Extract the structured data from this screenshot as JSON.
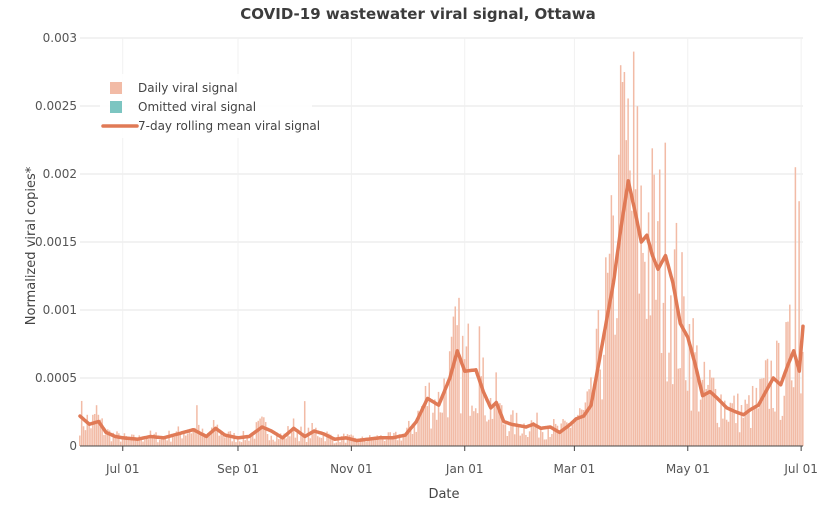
{
  "chart_data": {
    "type": "bar",
    "title": "COVID-19 wastewater viral signal, Ottawa",
    "xlabel": "Date",
    "ylabel": "Normalized viral copies*",
    "ylim": [
      0,
      0.003
    ],
    "yticks": [
      0,
      0.0005,
      0.001,
      0.0015,
      0.002,
      0.0025,
      0.003
    ],
    "ytick_labels": [
      "0",
      "0.0005",
      "0.001",
      "0.0015",
      "0.002",
      "0.0025",
      "0.003"
    ],
    "xlim": [
      -23,
      366
    ],
    "xticks": [
      0,
      62,
      123,
      184,
      243,
      304,
      365
    ],
    "xtick_labels": [
      "Jul 01",
      "Sep 01",
      "Nov 01",
      "Jan 01",
      "Mar 01",
      "May 01",
      "Jul 01"
    ],
    "x_unit": "days since Jul 01",
    "grid": true,
    "legend_position": "top-left",
    "legend": [
      {
        "label": "Daily viral signal",
        "kind": "bar",
        "color": "#f2bba6"
      },
      {
        "label": "Omitted viral signal",
        "kind": "bar",
        "color": "#7cc5c1"
      },
      {
        "label": "7-day rolling mean viral signal",
        "kind": "line",
        "color": "#e07a56"
      }
    ],
    "colors": {
      "daily": "#f2bba6",
      "omitted": "#7cc5c1",
      "mean": "#e07a56",
      "grid": "#e6e6e6"
    },
    "series": [
      {
        "name": "7-day rolling mean viral signal",
        "x": [
          -23,
          -18,
          -13,
          -9,
          -4,
          0,
          8,
          15,
          22,
          30,
          38,
          45,
          50,
          55,
          62,
          68,
          75,
          80,
          86,
          92,
          98,
          103,
          108,
          114,
          120,
          126,
          132,
          138,
          145,
          152,
          158,
          164,
          170,
          176,
          180,
          184,
          190,
          194,
          198,
          201,
          205,
          209,
          213,
          217,
          221,
          225,
          230,
          235,
          240,
          244,
          248,
          252,
          256,
          260,
          264,
          268,
          272,
          276,
          279,
          282,
          285,
          288,
          292,
          296,
          300,
          304,
          308,
          312,
          316,
          320,
          325,
          330,
          334,
          338,
          342,
          346,
          350,
          354,
          358,
          361,
          364,
          366
        ],
        "y": [
          0.00022,
          0.00016,
          0.00018,
          0.0001,
          7e-05,
          6e-05,
          5e-05,
          7e-05,
          6e-05,
          9e-05,
          0.00012,
          7e-05,
          0.00013,
          8e-05,
          6e-05,
          7e-05,
          0.00014,
          0.00011,
          6e-05,
          0.00013,
          7e-05,
          0.00011,
          9e-05,
          5e-05,
          6e-05,
          4e-05,
          5e-05,
          6e-05,
          6e-05,
          8e-05,
          0.00018,
          0.00035,
          0.0003,
          0.0005,
          0.0007,
          0.00055,
          0.00056,
          0.0004,
          0.00028,
          0.00032,
          0.00018,
          0.00016,
          0.00015,
          0.00014,
          0.00016,
          0.00013,
          0.00014,
          0.0001,
          0.00015,
          0.0002,
          0.00022,
          0.0003,
          0.0006,
          0.0009,
          0.0012,
          0.0016,
          0.00195,
          0.0017,
          0.0015,
          0.00155,
          0.0014,
          0.0013,
          0.0014,
          0.0012,
          0.0009,
          0.0008,
          0.0006,
          0.00037,
          0.0004,
          0.00035,
          0.00028,
          0.00025,
          0.00023,
          0.00027,
          0.0003,
          0.0004,
          0.0005,
          0.00045,
          0.0006,
          0.0007,
          0.00055,
          0.00088
        ]
      },
      {
        "name": "Daily viral signal peaks",
        "x": [
          -14,
          40,
          98,
          186,
          192,
          268,
          270,
          275,
          362,
          364
        ],
        "y": [
          0.0003,
          0.0003,
          0.00033,
          0.0009,
          0.00088,
          0.0028,
          0.00275,
          0.0029,
          0.00205,
          0.0018
        ]
      }
    ]
  }
}
